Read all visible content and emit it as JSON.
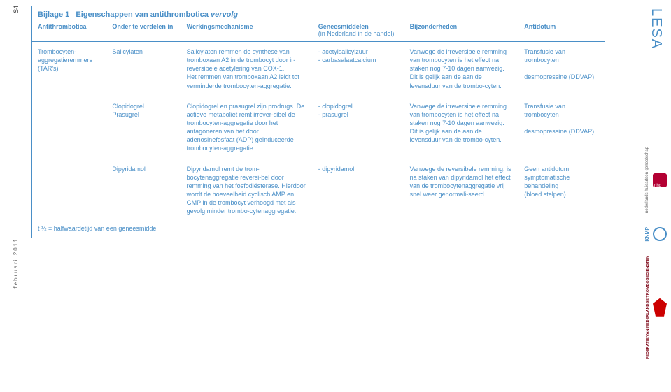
{
  "page_number": "S4",
  "side_date": "februari 2011",
  "lesa_label": "LESA",
  "title_prefix": "Bijlage 1",
  "title_main": "Eigenschappen van antithrombotica",
  "title_suffix": "vervolg",
  "footnote": "t ½ = halfwaardetijd van een geneesmiddel",
  "columns": [
    "Antithrombotica",
    "Onder te verdelen in",
    "Werkingsmechanisme",
    "Geneesmiddelen",
    "(in Nederland in de handel)",
    "Bijzonderheden",
    "Antidotum"
  ],
  "rows": [
    {
      "class": "Trombocyten-\naggregatieremmers\n(TAR's)",
      "subdiv": "Salicylaten",
      "mechanism": "Salicylaten remmen de synthese van tromboxaan A2 in de trombocyt door ir-reversibele acetylering van COX-1.\nHet remmen van tromboxaan A2 leidt tot verminderde trombocyten-aggregatie.",
      "drugs": "- acetylsalicylzuur\n- carbasalaatcalcium",
      "notes": "Vanwege de irreversibele remming van trombocyten is het effect na staken nog 7-10 dagen aanwezig.\nDit is gelijk aan de aan de levensduur van de trombo-cyten.",
      "antidote": "Transfusie van trombocyten\n\ndesmopressine (DDVAP)"
    },
    {
      "class": "",
      "subdiv": "Clopidogrel\nPrasugrel",
      "mechanism": "Clopidogrel en prasugrel zijn prodrugs. De actieve metaboliet remt irrever-sibel de trombocyten-aggregatie door het antagoneren van het door adenosinefosfaat (ADP) geïnduceerde trombocyten-aggregatie.",
      "drugs": "- clopidogrel\n- prasugrel",
      "notes": "Vanwege de irreversibele remming van trombocyten is het effect na staken nog 7-10 dagen aanwezig.\nDit is gelijk aan de aan de levensduur van de trombo-cyten.",
      "antidote": "Transfusie van trombocyten\n\ndesmopressine (DDVAP)"
    },
    {
      "class": "",
      "subdiv": "Dipyridamol",
      "mechanism": "Dipyridamol remt de trom-bocytenaggregatie reversi-bel door remming van het fosfodiësterase. Hierdoor wordt de hoeveelheid cyclisch AMP en GMP in de trombocyt verhoogd met als gevolg minder trombo-cytenaggregatie.",
      "drugs": "- dipyridamol",
      "notes": "Vanwege de reversibele remming, is na staken van dipyridamol het effect van de trombocytenaggregatie vrij snel weer genormali-seerd.",
      "antidote": "Geen antidotum;\nsymptomatische behandeling\n(bloed stelpen)."
    }
  ],
  "logos": {
    "nhg": "nederlands huisartsen genootschap",
    "knmp": "KNMP",
    "fnt": "FEDERATIE VAN NEDERLANDSE TROMBOSEDIENSTEN"
  },
  "colors": {
    "accent": "#4a8fc7",
    "nhg": "#b30033",
    "fnt": "#c00018"
  }
}
